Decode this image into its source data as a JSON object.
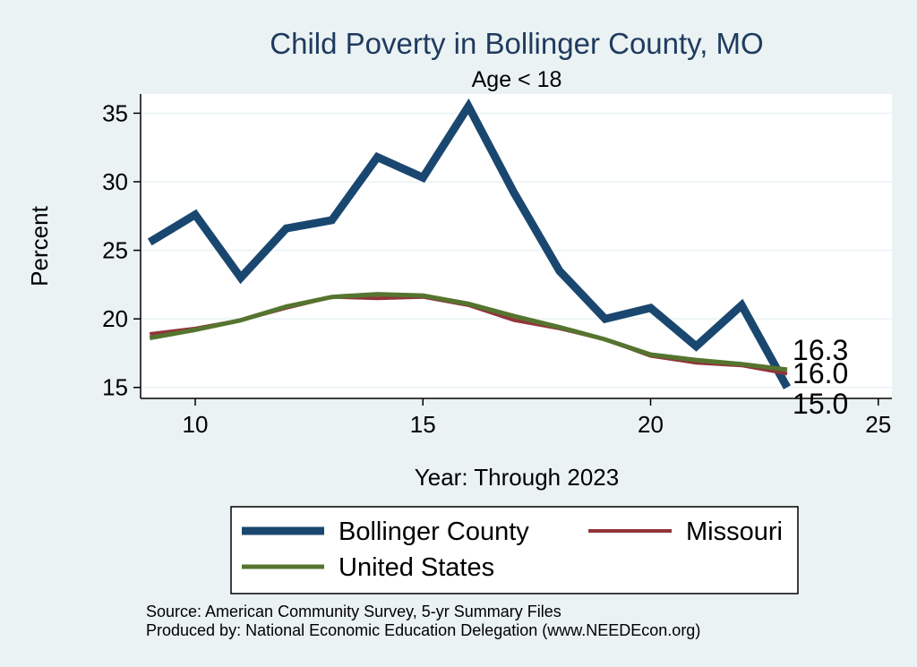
{
  "chart_data": {
    "type": "line",
    "title": "Child Poverty in Bollinger County, MO",
    "subtitle": "Age < 18",
    "xlabel": "Year: Through 2023",
    "ylabel": "Percent",
    "xlim": [
      8.8,
      25.3
    ],
    "ylim": [
      14.2,
      36.4
    ],
    "xticks": [
      10,
      15,
      20,
      25
    ],
    "yticks": [
      15,
      20,
      25,
      30,
      35
    ],
    "grid": true,
    "x": [
      9,
      10,
      11,
      12,
      13,
      14,
      15,
      16,
      17,
      18,
      19,
      20,
      21,
      22,
      23
    ],
    "series": [
      {
        "name": "Bollinger County",
        "color": "#1a476f",
        "values": [
          25.6,
          27.6,
          23.0,
          26.6,
          27.2,
          31.8,
          30.3,
          35.5,
          29.2,
          23.5,
          20.0,
          20.8,
          18.0,
          21.0,
          15.0
        ],
        "end_label": "15.0"
      },
      {
        "name": "Missouri",
        "color": "#90353b",
        "values": [
          18.9,
          19.3,
          19.9,
          20.8,
          21.6,
          21.5,
          21.6,
          21.0,
          19.9,
          19.3,
          18.5,
          17.3,
          16.8,
          16.6,
          16.0
        ],
        "end_label": "16.0"
      },
      {
        "name": "United States",
        "color": "#55752f",
        "values": [
          18.6,
          19.2,
          19.9,
          20.9,
          21.6,
          21.8,
          21.7,
          21.1,
          20.2,
          19.4,
          18.5,
          17.4,
          17.0,
          16.7,
          16.3
        ],
        "end_label": "16.3"
      }
    ],
    "legend_position": "bottom"
  },
  "notes": {
    "source": "Source: American Community Survey, 5-yr Summary Files",
    "produced": "Produced by: National Economic Education Delegation (www.NEEDEcon.org)"
  }
}
